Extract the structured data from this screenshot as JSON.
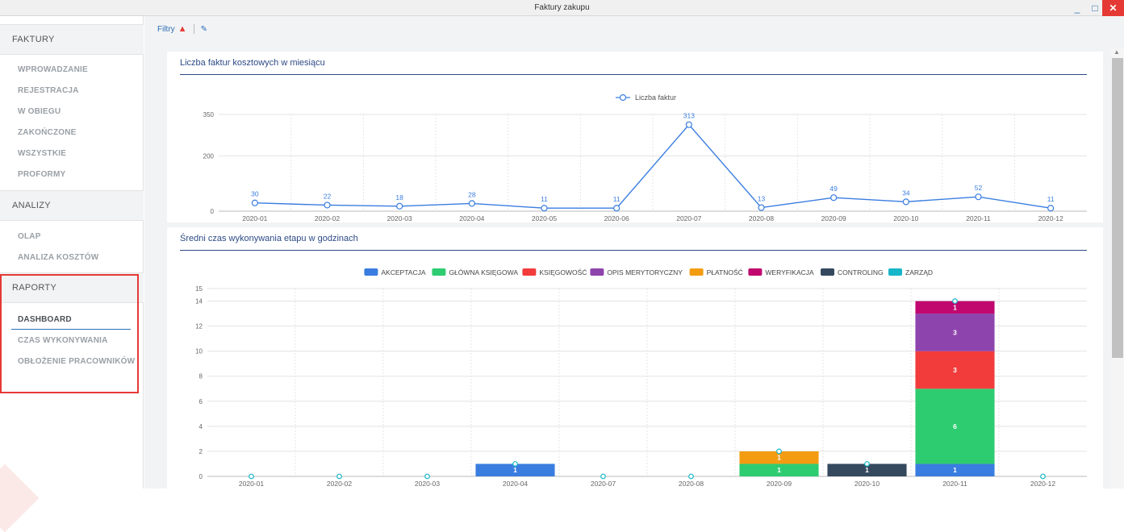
{
  "window": {
    "title": "Faktury zakupu"
  },
  "sidebar": {
    "sections": [
      {
        "header": "FAKTURY",
        "items": [
          "WPROWADZANIE",
          "REJESTRACJA",
          "W OBIEGU",
          "ZAKOŃCZONE",
          "WSZYSTKIE",
          "PROFORMY"
        ]
      },
      {
        "header": "ANALIZY",
        "items": [
          "OLAP",
          "ANALIZA KOSZTÓW"
        ]
      },
      {
        "header": "RAPORTY",
        "items": [
          "DASHBOARD",
          "CZAS WYKONYWANIA",
          "OBŁOŻENIE PRACOWNIKÓW"
        ]
      }
    ],
    "active_item": "DASHBOARD"
  },
  "toolbar": {
    "filters_label": "Filtry"
  },
  "colors": {
    "accent": "#2c6fb7",
    "highlight_border": "#e53935"
  },
  "icons": {
    "warning": "warning-icon",
    "edit": "edit-icon"
  },
  "chart_data": [
    {
      "type": "line",
      "title": "Liczba faktur kosztowych w miesiącu",
      "categories": [
        "2020-01",
        "2020-02",
        "2020-03",
        "2020-04",
        "2020-05",
        "2020-06",
        "2020-07",
        "2020-08",
        "2020-09",
        "2020-10",
        "2020-11",
        "2020-12"
      ],
      "series": [
        {
          "name": "Liczba faktur",
          "values": [
            30,
            22,
            18,
            28,
            11,
            11,
            313,
            13,
            49,
            34,
            52,
            11
          ],
          "color": "#3a7de0"
        }
      ],
      "yticks": [
        0,
        200,
        350
      ],
      "ylim": [
        0,
        350
      ],
      "legend": "top-center",
      "grid": true
    },
    {
      "type": "bar",
      "stacked": true,
      "title": "Średni czas wykonywania etapu w godzinach",
      "categories": [
        "2020-01",
        "2020-02",
        "2020-03",
        "2020-04",
        "2020-07",
        "2020-08",
        "2020-09",
        "2020-10",
        "2020-11",
        "2020-12"
      ],
      "series": [
        {
          "name": "AKCEPTACJA",
          "color": "#3a7de0",
          "values": [
            0,
            0,
            0,
            1,
            0,
            0,
            0,
            0,
            1,
            0
          ]
        },
        {
          "name": "GŁÓWNA KSIĘGOWA",
          "color": "#2ecc71",
          "values": [
            0,
            0,
            0,
            0,
            0,
            0,
            1,
            0,
            6,
            0
          ]
        },
        {
          "name": "KSIĘGOWOŚĆ",
          "color": "#f23c3c",
          "values": [
            0,
            0,
            0,
            0,
            0,
            0,
            0,
            0,
            3,
            0
          ]
        },
        {
          "name": "OPIS MERYTORYCZNY",
          "color": "#8e44ad",
          "values": [
            0,
            0,
            0,
            0,
            0,
            0,
            0,
            0,
            3,
            0
          ]
        },
        {
          "name": "PŁATNOŚĆ",
          "color": "#f39c12",
          "values": [
            0,
            0,
            0,
            0,
            0,
            0,
            1,
            0,
            0,
            0
          ]
        },
        {
          "name": "WERYFIKACJA",
          "color": "#c0086e",
          "values": [
            0,
            0,
            0,
            0,
            0,
            0,
            0,
            0,
            1,
            0
          ]
        },
        {
          "name": "CONTROLING",
          "color": "#34495e",
          "values": [
            0,
            0,
            0,
            0,
            0,
            0,
            0,
            1,
            0,
            0
          ]
        },
        {
          "name": "ZARZĄD",
          "color": "#17b6c9",
          "values": [
            0,
            0,
            0,
            0,
            0,
            0,
            0,
            0,
            0,
            0
          ]
        }
      ],
      "yticks": [
        0,
        2,
        4,
        6,
        8,
        10,
        12,
        14,
        15
      ],
      "ylim": [
        0,
        15
      ],
      "legend": "top-center",
      "grid": true
    }
  ]
}
